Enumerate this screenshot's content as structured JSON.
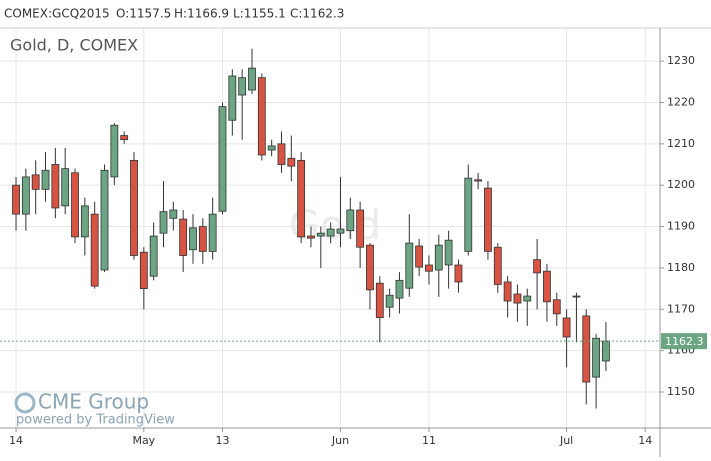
{
  "chart_data": {
    "type": "candlestick",
    "title": "Gold, D, COMEX",
    "watermark": "Gold",
    "header": {
      "symbol": "COMEX:GCQ2015",
      "open": "O:1157.5",
      "high": "H:1166.9",
      "low": "L:1155.1",
      "close": "C:1162.3"
    },
    "branding": {
      "name": "CME Group",
      "powered": "powered by TradingView"
    },
    "open": [
      1200,
      1193,
      1202.5,
      1199,
      1205,
      1195,
      1203,
      1187.5,
      1193,
      1179.5,
      1202,
      1212,
      1206,
      1183.8,
      1178,
      1188.4,
      1192,
      1191.8,
      1184.4,
      1190,
      1184,
      1193.7,
      1215.7,
      1221.8,
      1223,
      1226,
      1208.5,
      1210,
      1206.5,
      1206,
      1187.7,
      1187.7,
      1187.7,
      1188.4,
      1189,
      1194,
      1185.5,
      1176.3,
      1170.5,
      1172.7,
      1175.1,
      1185.3,
      1180.7,
      1179.5,
      1180.7,
      1180.7,
      1184,
      1201.3,
      1199.3,
      1185,
      1176.6,
      1173.7,
      1172,
      1182,
      1179.2,
      1172.3,
      1167.9,
      1173,
      1168.4,
      1153.6,
      1157.5
    ],
    "high": [
      1202,
      1204,
      1206,
      1208,
      1209,
      1209,
      1204,
      1197,
      1196,
      1205,
      1215,
      1213,
      1208,
      1185,
      1191,
      1201,
      1196,
      1194,
      1193,
      1192,
      1197,
      1220,
      1228,
      1228,
      1233,
      1227,
      1211,
      1213,
      1212,
      1208,
      1190,
      1190,
      1191,
      1202,
      1197,
      1196,
      1186,
      1178,
      1175,
      1179,
      1193,
      1187,
      1183,
      1188,
      1189,
      1182,
      1205,
      1203,
      1201,
      1186,
      1178,
      1176,
      1175,
      1187,
      1181,
      1174,
      1170,
      1174,
      1170,
      1164,
      1166.9
    ],
    "low": [
      1189,
      1189,
      1193,
      1196,
      1192,
      1193,
      1186,
      1183,
      1175,
      1179,
      1200,
      1210,
      1182,
      1170,
      1177,
      1185,
      1189,
      1179,
      1181,
      1181,
      1182,
      1193,
      1212,
      1211,
      1222,
      1206,
      1207,
      1203,
      1201,
      1186,
      1185,
      1180,
      1186,
      1185,
      1187,
      1180,
      1170,
      1162,
      1168,
      1169,
      1173,
      1178,
      1176,
      1173,
      1175,
      1174,
      1183,
      1199,
      1182,
      1174,
      1168,
      1167,
      1166,
      1170,
      1167,
      1166,
      1156,
      1162,
      1147,
      1146,
      1155.1
    ],
    "close": [
      1193,
      1202,
      1199,
      1203.6,
      1194.5,
      1204,
      1187.5,
      1195,
      1175.6,
      1203.6,
      1214.5,
      1211,
      1183,
      1175,
      1187.7,
      1193.6,
      1194,
      1183,
      1189.7,
      1184,
      1193,
      1219,
      1226.4,
      1226,
      1228.3,
      1207.3,
      1209.5,
      1205,
      1204.6,
      1187.5,
      1187.2,
      1188.4,
      1189.4,
      1189.4,
      1194,
      1185,
      1174.7,
      1168,
      1173.4,
      1177,
      1186,
      1180.2,
      1179.2,
      1185.5,
      1186.7,
      1176.6,
      1201.7,
      1201,
      1184,
      1176,
      1172,
      1171.5,
      1173.2,
      1178.8,
      1171.8,
      1168.9,
      1163.3,
      1173.2,
      1152.4,
      1163,
      1162.3
    ],
    "up_color": "#6ba583",
    "down_color": "#d75442",
    "xlim": [
      -1.63,
      65.5
    ],
    "xticks": [
      {
        "value": 0,
        "label": "14"
      },
      {
        "value": 13,
        "label": "May"
      },
      {
        "value": 21,
        "label": "13"
      },
      {
        "value": 33,
        "label": "Jun"
      },
      {
        "value": 42,
        "label": "11"
      },
      {
        "value": 56,
        "label": "Jul"
      },
      {
        "value": 64,
        "label": "14"
      }
    ],
    "ylim": [
      1141.3,
      1238
    ],
    "yticks": [
      1150,
      1160,
      1170,
      1180,
      1190,
      1200,
      1210,
      1220,
      1230
    ],
    "last_price": 1162.3,
    "last_price_color": "#6ba583",
    "grid": true
  }
}
